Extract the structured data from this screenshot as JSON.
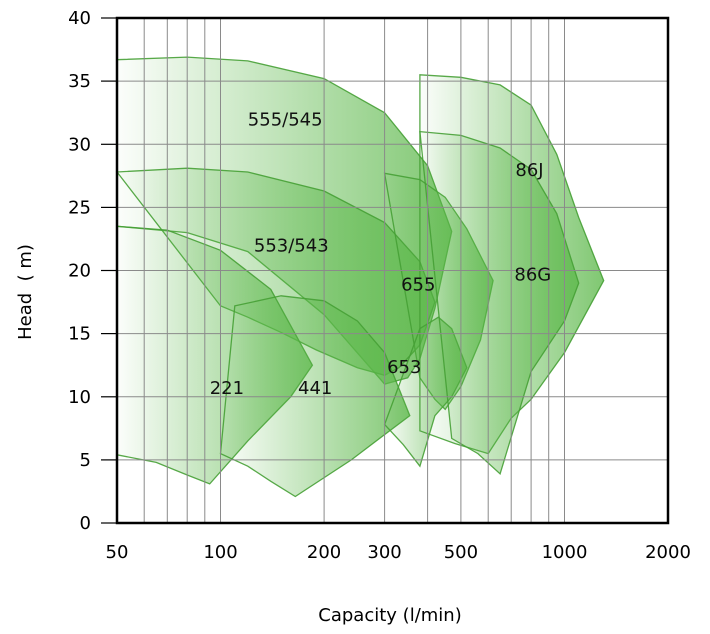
{
  "chart_data": {
    "type": "area",
    "title": "",
    "xlabel": "Capacity (l/min)",
    "ylabel": "Head  ( m)",
    "x_scale": "log",
    "xlim": [
      50,
      2000
    ],
    "ylim": [
      0,
      40
    ],
    "x_ticks": [
      50,
      100,
      200,
      300,
      500,
      1000,
      2000
    ],
    "y_ticks": [
      0,
      5,
      10,
      15,
      20,
      25,
      30,
      35,
      40
    ],
    "x_gridlines": [
      50,
      60,
      70,
      80,
      90,
      100,
      200,
      300,
      400,
      500,
      600,
      700,
      800,
      900,
      1000
    ],
    "y_gridlines": [
      5,
      10,
      15,
      20,
      25,
      30,
      35
    ],
    "grid": true,
    "legend": "none",
    "fill_color": "#5cb84a",
    "edge_color": "#46a035",
    "regions": [
      {
        "label": "555/545",
        "label_at": [
          120,
          31.5
        ],
        "points": [
          [
            50,
            36.7
          ],
          [
            80,
            36.9
          ],
          [
            120,
            36.6
          ],
          [
            200,
            35.2
          ],
          [
            300,
            32.5
          ],
          [
            400,
            28.3
          ],
          [
            470,
            23.1
          ],
          [
            420,
            17
          ],
          [
            380,
            13
          ],
          [
            350,
            11.5
          ],
          [
            300,
            11
          ],
          [
            200,
            16.5
          ],
          [
            120,
            21.5
          ],
          [
            80,
            23
          ],
          [
            50,
            23.5
          ]
        ]
      },
      {
        "label": "553/543",
        "label_at": [
          125,
          21.5
        ],
        "points": [
          [
            50,
            27.8
          ],
          [
            80,
            28.1
          ],
          [
            120,
            27.8
          ],
          [
            200,
            26.3
          ],
          [
            300,
            23.8
          ],
          [
            380,
            20.7
          ],
          [
            420,
            17.5
          ],
          [
            380,
            14.1
          ],
          [
            330,
            12.3
          ],
          [
            300,
            11.7
          ],
          [
            250,
            12.3
          ],
          [
            190,
            13.7
          ],
          [
            150,
            15.1
          ],
          [
            120,
            16.3
          ],
          [
            100,
            17.2
          ]
        ]
      },
      {
        "label": "221",
        "label_at": [
          93,
          10.2
        ],
        "points": [
          [
            50,
            23.5
          ],
          [
            70,
            23.2
          ],
          [
            100,
            21.6
          ],
          [
            140,
            18.5
          ],
          [
            185,
            12.5
          ],
          [
            160,
            10
          ],
          [
            120,
            6.5
          ],
          [
            93,
            3.1
          ],
          [
            80,
            3.8
          ],
          [
            65,
            4.8
          ],
          [
            50,
            5.4
          ]
        ]
      },
      {
        "label": "441",
        "label_at": [
          168,
          10.2
        ],
        "points": [
          [
            110,
            17.2
          ],
          [
            150,
            18
          ],
          [
            200,
            17.6
          ],
          [
            250,
            16
          ],
          [
            300,
            13.5
          ],
          [
            355,
            8.5
          ],
          [
            300,
            7
          ],
          [
            240,
            5
          ],
          [
            165,
            2.1
          ],
          [
            140,
            3.3
          ],
          [
            120,
            4.5
          ],
          [
            100,
            5.5
          ]
        ]
      },
      {
        "label": "655",
        "label_at": [
          335,
          18.4
        ],
        "points": [
          [
            300,
            27.7
          ],
          [
            380,
            27.2
          ],
          [
            450,
            25.8
          ],
          [
            520,
            23.3
          ],
          [
            620,
            19.2
          ],
          [
            570,
            14.5
          ],
          [
            500,
            10.8
          ],
          [
            450,
            9
          ],
          [
            420,
            9.8
          ],
          [
            380,
            11.5
          ]
        ]
      },
      {
        "label": "653",
        "label_at": [
          305,
          11.9
        ],
        "points": [
          [
            380,
            15.4
          ],
          [
            430,
            16.3
          ],
          [
            470,
            15.4
          ],
          [
            520,
            12.3
          ],
          [
            470,
            10
          ],
          [
            420,
            8.5
          ],
          [
            380,
            4.5
          ],
          [
            340,
            6.2
          ],
          [
            300,
            7.8
          ]
        ]
      },
      {
        "label": "86J",
        "label_at": [
          720,
          27.5
        ],
        "points": [
          [
            380,
            35.5
          ],
          [
            500,
            35.3
          ],
          [
            650,
            34.7
          ],
          [
            800,
            33.1
          ],
          [
            950,
            29.2
          ],
          [
            1100,
            24.2
          ],
          [
            1300,
            19.2
          ],
          [
            1000,
            13.5
          ],
          [
            800,
            9.8
          ],
          [
            700,
            8.3
          ],
          [
            600,
            5.5
          ],
          [
            480,
            6.3
          ],
          [
            380,
            7.3
          ]
        ]
      },
      {
        "label": "86G",
        "label_at": [
          715,
          19.2
        ],
        "points": [
          [
            380,
            31
          ],
          [
            500,
            30.7
          ],
          [
            650,
            29.7
          ],
          [
            800,
            28
          ],
          [
            950,
            24.5
          ],
          [
            1100,
            19
          ],
          [
            1000,
            16
          ],
          [
            800,
            12
          ],
          [
            650,
            3.9
          ],
          [
            560,
            5.5
          ],
          [
            470,
            6.7
          ]
        ]
      }
    ]
  }
}
